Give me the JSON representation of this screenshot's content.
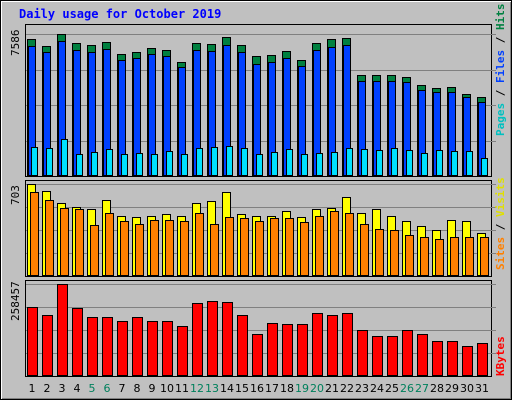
{
  "chart_data": {
    "type": "bar",
    "title": "Daily usage for October 2019",
    "categories": [
      "1",
      "2",
      "3",
      "4",
      "5",
      "6",
      "7",
      "8",
      "9",
      "10",
      "11",
      "12",
      "13",
      "14",
      "15",
      "16",
      "17",
      "18",
      "19",
      "20",
      "21",
      "22",
      "23",
      "24",
      "25",
      "26",
      "27",
      "28",
      "29",
      "30",
      "31"
    ],
    "weekend_days": [
      5,
      6,
      12,
      13,
      19,
      20,
      26,
      27
    ],
    "panels": [
      {
        "id": "hits",
        "axis_max_label": "7586",
        "ylim": [
          0,
          7586
        ],
        "series": [
          {
            "name": "Hits",
            "color": "#008040",
            "values": [
              7300,
              6950,
              7586,
              7100,
              7000,
              7150,
              6500,
              6600,
              6850,
              6750,
              6100,
              7100,
              7050,
              7420,
              7000,
              6400,
              6450,
              6700,
              6200,
              7100,
              7300,
              7350,
              5400,
              5400,
              5400,
              5300,
              4850,
              4700,
              4750,
              4400,
              4200
            ]
          },
          {
            "name": "Files",
            "color": "#0040ff",
            "values": [
              6950,
              6600,
              7200,
              6750,
              6600,
              6800,
              6200,
              6300,
              6500,
              6400,
              5800,
              6750,
              6700,
              7000,
              6650,
              6000,
              6100,
              6300,
              5900,
              6750,
              6900,
              7000,
              5100,
              5100,
              5050,
              5000,
              4600,
              4500,
              4500,
              4200,
              3950
            ]
          },
          {
            "name": "Pages",
            "color": "#00e0ff",
            "values": [
              1550,
              1500,
              2000,
              1200,
              1300,
              1450,
              1150,
              1250,
              1200,
              1350,
              1200,
              1500,
              1550,
              1600,
              1500,
              1150,
              1300,
              1450,
              1150,
              1250,
              1300,
              1500,
              1450,
              1400,
              1500,
              1400,
              1250,
              1400,
              1350,
              1350,
              950
            ]
          }
        ]
      },
      {
        "id": "visits",
        "axis_max_label": "703",
        "ylim": [
          0,
          703
        ],
        "series": [
          {
            "name": "Visits",
            "color": "#ffff00",
            "values": [
              703,
              650,
              560,
              530,
              510,
              580,
              460,
              450,
              460,
              470,
              460,
              560,
              570,
              640,
              470,
              460,
              460,
              500,
              450,
              510,
              520,
              600,
              480,
              510,
              460,
              420,
              380,
              350,
              430,
              420,
              330
            ]
          },
          {
            "name": "Sites",
            "color": "#ff8000",
            "values": [
              640,
              580,
              520,
              510,
              390,
              480,
              420,
              400,
              430,
              430,
              420,
              480,
              400,
              450,
              440,
              420,
              440,
              440,
              410,
              460,
              500,
              480,
              400,
              360,
              350,
              310,
              300,
              280,
              300,
              300,
              300
            ]
          }
        ]
      },
      {
        "id": "kbytes",
        "axis_max_label": "258457",
        "ylim": [
          0,
          258457
        ],
        "series": [
          {
            "name": "KBytes",
            "color": "#ff0000",
            "values": [
              195000,
              170000,
              258457,
              190000,
              165000,
              165000,
              155000,
              165000,
              155000,
              155000,
              140000,
              205000,
              212000,
              207000,
              172000,
              118000,
              148000,
              145000,
              145000,
              178000,
              172000,
              177000,
              130000,
              112000,
              112000,
              128000,
              118000,
              98000,
              98000,
              83000,
              92000
            ]
          }
        ]
      }
    ],
    "legend": {
      "hits_panel": [
        "Pages",
        " / ",
        "Files",
        " / ",
        "Hits"
      ],
      "visits_panel": [
        "Sites",
        " / ",
        "Visits"
      ],
      "kbytes_panel": [
        "KBytes"
      ]
    },
    "colors": {
      "background": "#c0c0c0",
      "title": "#0000ff",
      "day_label": "#000000",
      "weekend_label": "#00805c",
      "pages_text": "#00c0c0",
      "files_text": "#0040ff",
      "hits_text": "#008040",
      "sites_text": "#ff8000",
      "visits_text": "#e0e000",
      "kbytes_text": "#ff0000",
      "separator_text": "#000000"
    }
  }
}
